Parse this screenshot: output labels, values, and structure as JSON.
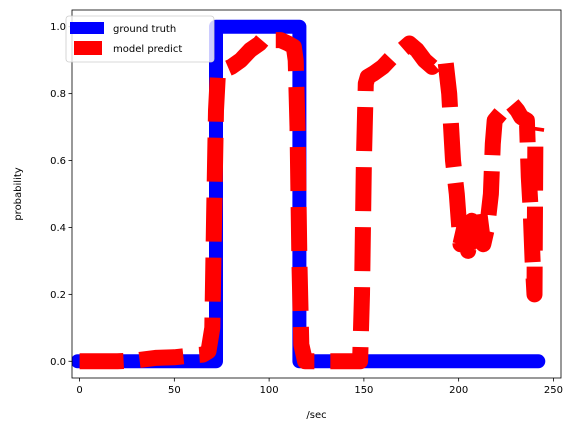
{
  "chart_data": {
    "type": "line",
    "title": "",
    "xlabel": "/sec",
    "ylabel": "probability",
    "xlim": [
      -4,
      254
    ],
    "ylim": [
      -0.05,
      1.05
    ],
    "xticks": [
      0,
      50,
      100,
      150,
      200,
      250
    ],
    "yticks": [
      0.0,
      0.2,
      0.4,
      0.6,
      0.8,
      1.0
    ],
    "x_tick_labels": [
      "0",
      "50",
      "100",
      "150",
      "200",
      "250"
    ],
    "y_tick_labels": [
      "0.0",
      "0.2",
      "0.4",
      "0.6",
      "0.8",
      "1.0"
    ],
    "grid": false,
    "legend": "top-left",
    "series": [
      {
        "name": "ground truth",
        "color": "#0000ff",
        "style": "solid",
        "points": [
          [
            -1,
            0
          ],
          [
            72,
            0
          ],
          [
            72,
            1
          ],
          [
            116,
            1
          ],
          [
            116,
            0
          ],
          [
            242,
            0
          ]
        ]
      },
      {
        "name": "model predict",
        "color": "#ff0000",
        "style": "dashed",
        "points": [
          [
            0,
            0.0
          ],
          [
            10,
            0.0
          ],
          [
            20,
            0.0
          ],
          [
            30,
            0.003
          ],
          [
            40,
            0.01
          ],
          [
            50,
            0.012
          ],
          [
            60,
            0.018
          ],
          [
            65,
            0.02
          ],
          [
            68,
            0.03
          ],
          [
            70,
            0.1
          ],
          [
            71,
            0.45
          ],
          [
            72,
            0.75
          ],
          [
            73,
            0.86
          ],
          [
            76,
            0.87
          ],
          [
            80,
            0.88
          ],
          [
            85,
            0.9
          ],
          [
            90,
            0.93
          ],
          [
            95,
            0.95
          ],
          [
            98,
            0.97
          ],
          [
            102,
            0.96
          ],
          [
            106,
            0.96
          ],
          [
            110,
            0.95
          ],
          [
            113,
            0.94
          ],
          [
            114,
            0.9
          ],
          [
            115,
            0.7
          ],
          [
            116,
            0.3
          ],
          [
            117,
            0.05
          ],
          [
            119,
            0.0
          ],
          [
            125,
            0.0
          ],
          [
            132,
            0.0
          ],
          [
            148,
            0.0
          ],
          [
            149,
            0.2
          ],
          [
            150,
            0.6
          ],
          [
            151,
            0.83
          ],
          [
            152,
            0.85
          ],
          [
            155,
            0.86
          ],
          [
            160,
            0.88
          ],
          [
            165,
            0.91
          ],
          [
            170,
            0.93
          ],
          [
            174,
            0.95
          ],
          [
            178,
            0.93
          ],
          [
            182,
            0.9
          ],
          [
            186,
            0.88
          ],
          [
            190,
            0.9
          ],
          [
            193,
            0.9
          ],
          [
            195,
            0.8
          ],
          [
            197,
            0.6
          ],
          [
            199,
            0.5
          ],
          [
            201,
            0.35
          ],
          [
            203,
            0.4
          ],
          [
            205,
            0.33
          ],
          [
            207,
            0.42
          ],
          [
            209,
            0.36
          ],
          [
            211,
            0.44
          ],
          [
            213,
            0.35
          ],
          [
            215,
            0.4
          ],
          [
            217,
            0.5
          ],
          [
            218,
            0.65
          ],
          [
            219,
            0.72
          ],
          [
            222,
            0.74
          ],
          [
            225,
            0.76
          ],
          [
            228,
            0.77
          ],
          [
            231,
            0.75
          ],
          [
            233,
            0.73
          ],
          [
            236,
            0.72
          ],
          [
            237,
            0.55
          ],
          [
            238,
            0.45
          ],
          [
            239,
            0.3
          ],
          [
            240,
            0.2
          ],
          [
            240.5,
            0.68
          ],
          [
            241,
            0.7
          ]
        ]
      }
    ]
  }
}
